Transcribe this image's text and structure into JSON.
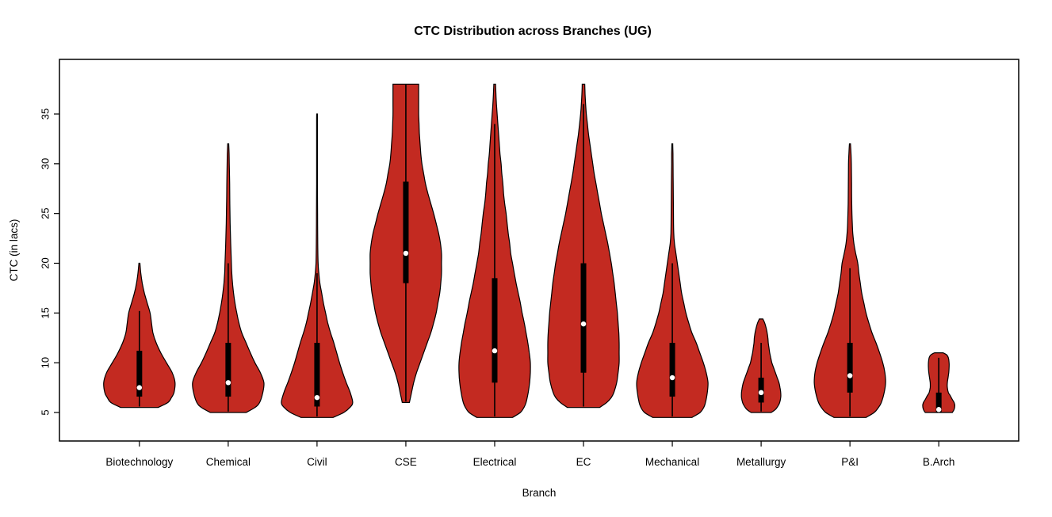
{
  "chart_data": {
    "type": "violin",
    "title": "CTC Distribution across Branches (UG)",
    "xlabel": "Branch",
    "ylabel": "CTC (in lacs)",
    "ylim": [
      3,
      40
    ],
    "yticks": [
      5,
      10,
      15,
      20,
      25,
      30,
      35
    ],
    "grid": false,
    "legend": "none",
    "fill_color": "#C32A21",
    "outline_color": "#000000",
    "box_color": "#000000",
    "median_dot_color": "#ffffff",
    "categories": [
      "Biotechnology",
      "Chemical",
      "Civil",
      "CSE",
      "Electrical",
      "EC",
      "Mechanical",
      "Metallurgy",
      "P&I",
      "B.Arch"
    ],
    "violins": [
      {
        "branch": "Biotechnology",
        "min": 5.5,
        "max": 20,
        "q1": 6.6,
        "median": 7.5,
        "q3": 11.2,
        "whisker_low": 5.6,
        "whisker_high": 15.2,
        "density": [
          [
            5.5,
            0.52
          ],
          [
            6,
            0.8
          ],
          [
            6.5,
            0.9
          ],
          [
            7,
            0.97
          ],
          [
            8,
            1.0
          ],
          [
            9,
            0.92
          ],
          [
            10,
            0.76
          ],
          [
            11,
            0.6
          ],
          [
            12,
            0.47
          ],
          [
            13,
            0.38
          ],
          [
            14,
            0.34
          ],
          [
            15,
            0.3
          ],
          [
            16,
            0.22
          ],
          [
            17,
            0.14
          ],
          [
            18,
            0.08
          ],
          [
            19,
            0.04
          ],
          [
            20,
            0.015
          ]
        ]
      },
      {
        "branch": "Chemical",
        "min": 5,
        "max": 32,
        "q1": 6.6,
        "median": 8,
        "q3": 12,
        "whisker_low": 5.1,
        "whisker_high": 20,
        "density": [
          [
            5,
            0.5
          ],
          [
            5.5,
            0.75
          ],
          [
            6,
            0.88
          ],
          [
            7,
            0.97
          ],
          [
            8,
            1.0
          ],
          [
            9,
            0.9
          ],
          [
            10,
            0.75
          ],
          [
            11,
            0.62
          ],
          [
            12,
            0.5
          ],
          [
            13,
            0.38
          ],
          [
            14,
            0.3
          ],
          [
            15,
            0.24
          ],
          [
            16,
            0.19
          ],
          [
            17,
            0.15
          ],
          [
            18,
            0.12
          ],
          [
            19,
            0.1
          ],
          [
            20,
            0.09
          ],
          [
            22,
            0.07
          ],
          [
            24,
            0.055
          ],
          [
            26,
            0.045
          ],
          [
            28,
            0.04
          ],
          [
            30,
            0.03
          ],
          [
            31,
            0.025
          ],
          [
            32,
            0.015
          ]
        ]
      },
      {
        "branch": "Civil",
        "min": 4.5,
        "max": 35,
        "q1": 5.6,
        "median": 6.5,
        "q3": 12,
        "whisker_low": 4.6,
        "whisker_high": 19,
        "density": [
          [
            4.5,
            0.45
          ],
          [
            5,
            0.75
          ],
          [
            5.5,
            0.92
          ],
          [
            6,
            1.0
          ],
          [
            7,
            0.93
          ],
          [
            8,
            0.82
          ],
          [
            9,
            0.72
          ],
          [
            10,
            0.63
          ],
          [
            11,
            0.55
          ],
          [
            12,
            0.47
          ],
          [
            13,
            0.38
          ],
          [
            14,
            0.3
          ],
          [
            15,
            0.24
          ],
          [
            16,
            0.18
          ],
          [
            17,
            0.13
          ],
          [
            18,
            0.08
          ],
          [
            19,
            0.05
          ],
          [
            20,
            0.03
          ],
          [
            22,
            0.02
          ],
          [
            25,
            0.015
          ],
          [
            28,
            0.012
          ],
          [
            30,
            0.012
          ],
          [
            32,
            0.012
          ],
          [
            34,
            0.012
          ],
          [
            35,
            0.01
          ]
        ]
      },
      {
        "branch": "CSE",
        "min": 6,
        "max": 38,
        "q1": 18,
        "median": 21,
        "q3": 28.2,
        "whisker_low": 6.1,
        "whisker_high": 38,
        "density": [
          [
            6,
            0.1
          ],
          [
            6.5,
            0.13
          ],
          [
            7,
            0.16
          ],
          [
            8,
            0.22
          ],
          [
            9,
            0.3
          ],
          [
            10,
            0.4
          ],
          [
            11,
            0.5
          ],
          [
            12,
            0.6
          ],
          [
            13,
            0.7
          ],
          [
            14,
            0.78
          ],
          [
            15,
            0.85
          ],
          [
            16,
            0.9
          ],
          [
            17,
            0.95
          ],
          [
            18,
            0.98
          ],
          [
            19,
            1.0
          ],
          [
            20,
            1.0
          ],
          [
            21,
            1.0
          ],
          [
            22,
            0.97
          ],
          [
            23,
            0.92
          ],
          [
            24,
            0.85
          ],
          [
            25,
            0.78
          ],
          [
            26,
            0.7
          ],
          [
            27,
            0.62
          ],
          [
            28,
            0.55
          ],
          [
            29,
            0.5
          ],
          [
            30,
            0.45
          ],
          [
            31,
            0.42
          ],
          [
            32,
            0.4
          ],
          [
            33,
            0.38
          ],
          [
            34,
            0.37
          ],
          [
            35,
            0.36
          ],
          [
            36,
            0.36
          ],
          [
            37,
            0.36
          ],
          [
            38,
            0.36
          ]
        ]
      },
      {
        "branch": "Electrical",
        "min": 4.5,
        "max": 38,
        "q1": 8,
        "median": 11.2,
        "q3": 18.5,
        "whisker_low": 4.6,
        "whisker_high": 34,
        "density": [
          [
            4.5,
            0.5
          ],
          [
            5,
            0.72
          ],
          [
            5.5,
            0.82
          ],
          [
            6,
            0.88
          ],
          [
            7,
            0.94
          ],
          [
            8,
            0.98
          ],
          [
            9,
            1.0
          ],
          [
            10,
            1.0
          ],
          [
            11,
            0.97
          ],
          [
            12,
            0.93
          ],
          [
            13,
            0.88
          ],
          [
            14,
            0.83
          ],
          [
            15,
            0.77
          ],
          [
            16,
            0.72
          ],
          [
            17,
            0.66
          ],
          [
            18,
            0.6
          ],
          [
            19,
            0.55
          ],
          [
            20,
            0.5
          ],
          [
            21,
            0.45
          ],
          [
            22,
            0.42
          ],
          [
            23,
            0.38
          ],
          [
            24,
            0.35
          ],
          [
            25,
            0.32
          ],
          [
            26,
            0.28
          ],
          [
            27,
            0.25
          ],
          [
            28,
            0.23
          ],
          [
            29,
            0.2
          ],
          [
            30,
            0.18
          ],
          [
            31,
            0.15
          ],
          [
            32,
            0.13
          ],
          [
            33,
            0.11
          ],
          [
            34,
            0.09
          ],
          [
            35,
            0.07
          ],
          [
            36,
            0.05
          ],
          [
            37,
            0.035
          ],
          [
            38,
            0.025
          ]
        ]
      },
      {
        "branch": "EC",
        "min": 5.5,
        "max": 38,
        "q1": 9,
        "median": 13.9,
        "q3": 20,
        "whisker_low": 5.6,
        "whisker_high": 36,
        "density": [
          [
            5.5,
            0.45
          ],
          [
            6,
            0.65
          ],
          [
            6.5,
            0.78
          ],
          [
            7,
            0.85
          ],
          [
            8,
            0.93
          ],
          [
            9,
            0.97
          ],
          [
            10,
            1.0
          ],
          [
            11,
            1.0
          ],
          [
            12,
            1.0
          ],
          [
            13,
            0.99
          ],
          [
            14,
            0.97
          ],
          [
            15,
            0.95
          ],
          [
            16,
            0.92
          ],
          [
            17,
            0.89
          ],
          [
            18,
            0.86
          ],
          [
            19,
            0.82
          ],
          [
            20,
            0.78
          ],
          [
            21,
            0.73
          ],
          [
            22,
            0.68
          ],
          [
            23,
            0.62
          ],
          [
            24,
            0.56
          ],
          [
            25,
            0.5
          ],
          [
            26,
            0.45
          ],
          [
            27,
            0.4
          ],
          [
            28,
            0.35
          ],
          [
            29,
            0.3
          ],
          [
            30,
            0.26
          ],
          [
            31,
            0.22
          ],
          [
            32,
            0.18
          ],
          [
            33,
            0.14
          ],
          [
            34,
            0.11
          ],
          [
            35,
            0.08
          ],
          [
            36,
            0.06
          ],
          [
            37,
            0.045
          ],
          [
            38,
            0.035
          ]
        ]
      },
      {
        "branch": "Mechanical",
        "min": 4.5,
        "max": 32,
        "q1": 6.6,
        "median": 8.5,
        "q3": 12,
        "whisker_low": 4.6,
        "whisker_high": 20,
        "density": [
          [
            4.5,
            0.55
          ],
          [
            5,
            0.78
          ],
          [
            5.5,
            0.88
          ],
          [
            6,
            0.93
          ],
          [
            7,
            0.98
          ],
          [
            8,
            1.0
          ],
          [
            9,
            0.95
          ],
          [
            10,
            0.87
          ],
          [
            11,
            0.77
          ],
          [
            12,
            0.67
          ],
          [
            13,
            0.55
          ],
          [
            14,
            0.46
          ],
          [
            15,
            0.38
          ],
          [
            16,
            0.32
          ],
          [
            17,
            0.26
          ],
          [
            18,
            0.22
          ],
          [
            19,
            0.18
          ],
          [
            20,
            0.14
          ],
          [
            21,
            0.1
          ],
          [
            22,
            0.06
          ],
          [
            23,
            0.04
          ],
          [
            24,
            0.035
          ],
          [
            26,
            0.03
          ],
          [
            28,
            0.025
          ],
          [
            30,
            0.02
          ],
          [
            31,
            0.018
          ],
          [
            32,
            0.012
          ]
        ]
      },
      {
        "branch": "Metallurgy",
        "min": 5,
        "max": 14.4,
        "q1": 6,
        "median": 7,
        "q3": 8.5,
        "whisker_low": 5.1,
        "whisker_high": 12,
        "density": [
          [
            5,
            0.28
          ],
          [
            5.3,
            0.4
          ],
          [
            5.7,
            0.48
          ],
          [
            6,
            0.52
          ],
          [
            6.5,
            0.55
          ],
          [
            7,
            0.55
          ],
          [
            7.5,
            0.53
          ],
          [
            8,
            0.5
          ],
          [
            8.5,
            0.45
          ],
          [
            9,
            0.4
          ],
          [
            9.5,
            0.35
          ],
          [
            10,
            0.3
          ],
          [
            10.5,
            0.27
          ],
          [
            11,
            0.24
          ],
          [
            11.5,
            0.22
          ],
          [
            12,
            0.2
          ],
          [
            12.5,
            0.19
          ],
          [
            13,
            0.17
          ],
          [
            13.5,
            0.14
          ],
          [
            14,
            0.1
          ],
          [
            14.4,
            0.05
          ]
        ]
      },
      {
        "branch": "P&I",
        "min": 4.5,
        "max": 32,
        "q1": 7,
        "median": 8.7,
        "q3": 12,
        "whisker_low": 4.6,
        "whisker_high": 19.5,
        "density": [
          [
            4.5,
            0.45
          ],
          [
            5,
            0.68
          ],
          [
            5.5,
            0.8
          ],
          [
            6,
            0.88
          ],
          [
            7,
            0.96
          ],
          [
            8,
            1.0
          ],
          [
            9,
            0.98
          ],
          [
            10,
            0.92
          ],
          [
            11,
            0.83
          ],
          [
            12,
            0.73
          ],
          [
            13,
            0.62
          ],
          [
            14,
            0.53
          ],
          [
            15,
            0.45
          ],
          [
            16,
            0.39
          ],
          [
            17,
            0.33
          ],
          [
            18,
            0.29
          ],
          [
            19,
            0.25
          ],
          [
            20,
            0.22
          ],
          [
            21,
            0.16
          ],
          [
            22,
            0.11
          ],
          [
            23,
            0.08
          ],
          [
            24,
            0.065
          ],
          [
            26,
            0.05
          ],
          [
            28,
            0.045
          ],
          [
            30,
            0.04
          ],
          [
            31,
            0.03
          ],
          [
            32,
            0.015
          ]
        ]
      },
      {
        "branch": "B.Arch",
        "min": 5,
        "max": 11,
        "q1": 5,
        "median": 5.3,
        "q3": 7,
        "whisker_low": 5,
        "whisker_high": 10.5,
        "density": [
          [
            5,
            0.38
          ],
          [
            5.3,
            0.43
          ],
          [
            5.7,
            0.45
          ],
          [
            6,
            0.43
          ],
          [
            6.3,
            0.38
          ],
          [
            6.7,
            0.32
          ],
          [
            7,
            0.27
          ],
          [
            7.5,
            0.24
          ],
          [
            8,
            0.24
          ],
          [
            8.5,
            0.26
          ],
          [
            9,
            0.28
          ],
          [
            9.5,
            0.29
          ],
          [
            10,
            0.29
          ],
          [
            10.5,
            0.27
          ],
          [
            10.8,
            0.22
          ],
          [
            11,
            0.12
          ]
        ]
      }
    ]
  }
}
